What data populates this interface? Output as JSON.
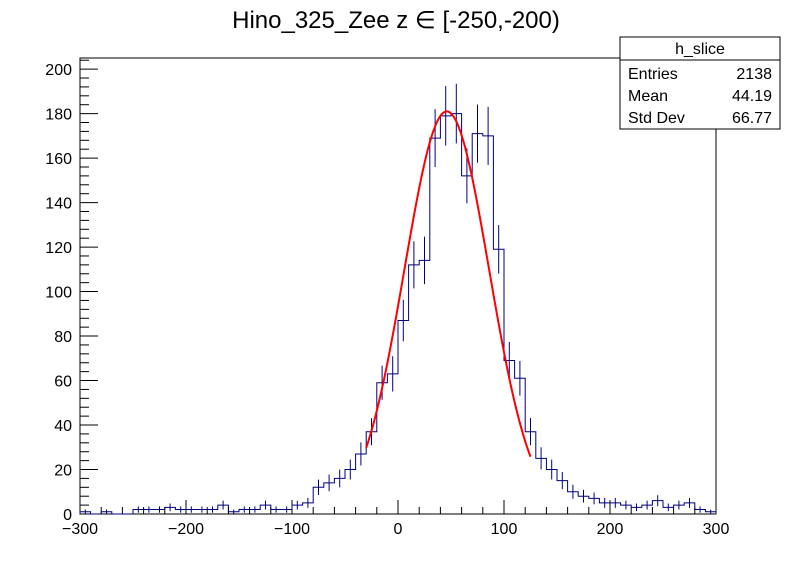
{
  "chart_data": {
    "type": "histogram",
    "title": "Hino_325_Zee z  ∈ [-250,-200)",
    "xlabel": "",
    "ylabel": "",
    "xlim": [
      -300,
      300
    ],
    "ylim": [
      0,
      205
    ],
    "x_ticks": [
      "−300",
      "−200",
      "−100",
      "0",
      "100",
      "200",
      "300"
    ],
    "y_ticks": [
      "0",
      "20",
      "40",
      "60",
      "80",
      "100",
      "120",
      "140",
      "160",
      "180",
      "200"
    ],
    "bin_width": 10,
    "bin_low_edges": [
      -300,
      -290,
      -280,
      -270,
      -260,
      -250,
      -240,
      -230,
      -220,
      -210,
      -200,
      -190,
      -180,
      -170,
      -160,
      -150,
      -140,
      -130,
      -120,
      -110,
      -100,
      -90,
      -80,
      -70,
      -60,
      -50,
      -40,
      -30,
      -20,
      -10,
      0,
      10,
      20,
      30,
      40,
      50,
      60,
      70,
      80,
      90,
      100,
      110,
      120,
      130,
      140,
      150,
      160,
      170,
      180,
      190,
      200,
      210,
      220,
      230,
      240,
      250,
      260,
      270,
      280,
      290
    ],
    "counts": [
      1,
      0,
      1,
      0,
      0,
      2,
      2,
      2,
      3,
      2,
      2,
      2,
      2,
      4,
      1,
      2,
      2,
      4,
      2,
      2,
      4,
      5,
      12,
      14,
      16,
      20,
      27,
      37,
      59,
      63,
      87,
      112,
      114,
      169,
      179,
      180,
      152,
      171,
      170,
      119,
      69,
      61,
      37,
      25,
      20,
      15,
      10,
      8,
      7,
      5,
      5,
      4,
      3,
      4,
      6,
      3,
      4,
      5,
      2,
      1
    ],
    "series": [
      {
        "name": "",
        "kind": "histogram",
        "color": "#00007f"
      },
      {
        "name": "",
        "kind": "gaussian-fit",
        "color": "#ff0000",
        "amplitude": 181,
        "mean": 46,
        "sigma": 40,
        "range": [
          -30,
          125
        ]
      }
    ],
    "stats_box": {
      "name": "h_slice",
      "rows": [
        {
          "label": "Entries",
          "value": "2138"
        },
        {
          "label": "Mean",
          "value": "44.19"
        },
        {
          "label": "Std Dev",
          "value": "66.77"
        }
      ]
    },
    "grid": false,
    "legend": "top-right"
  }
}
